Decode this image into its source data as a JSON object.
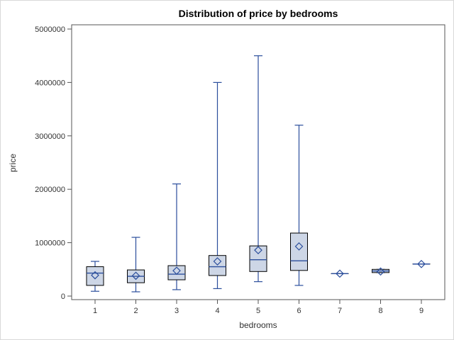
{
  "chart_data": {
    "type": "box",
    "title": "Distribution of price by bedrooms",
    "xlabel": "bedrooms",
    "ylabel": "price",
    "ylim": [
      0,
      5000000
    ],
    "yticks": [
      0,
      1000000,
      2000000,
      3000000,
      4000000,
      5000000
    ],
    "ytick_labels": [
      "0",
      "1000000",
      "2000000",
      "3000000",
      "4000000",
      "5000000"
    ],
    "categories": [
      "1",
      "2",
      "3",
      "4",
      "5",
      "6",
      "7",
      "8",
      "9"
    ],
    "series": [
      {
        "category": "1",
        "min": 90000,
        "q1": 200000,
        "median": 430000,
        "q3": 550000,
        "max": 650000,
        "mean": 390000
      },
      {
        "category": "2",
        "min": 80000,
        "q1": 250000,
        "median": 370000,
        "q3": 490000,
        "max": 1100000,
        "mean": 380000
      },
      {
        "category": "3",
        "min": 120000,
        "q1": 305000,
        "median": 410000,
        "q3": 570000,
        "max": 2100000,
        "mean": 475000
      },
      {
        "category": "4",
        "min": 140000,
        "q1": 385000,
        "median": 550000,
        "q3": 760000,
        "max": 4000000,
        "mean": 650000
      },
      {
        "category": "5",
        "min": 270000,
        "q1": 460000,
        "median": 680000,
        "q3": 940000,
        "max": 4500000,
        "mean": 860000
      },
      {
        "category": "6",
        "min": 200000,
        "q1": 480000,
        "median": 660000,
        "q3": 1180000,
        "max": 3200000,
        "mean": 930000
      },
      {
        "category": "7",
        "min": 420000,
        "q1": 420000,
        "median": 420000,
        "q3": 420000,
        "max": 420000,
        "mean": 420000
      },
      {
        "category": "8",
        "min": 440000,
        "q1": 440000,
        "median": 470000,
        "q3": 500000,
        "max": 500000,
        "mean": 460000
      },
      {
        "category": "9",
        "min": 600000,
        "q1": 600000,
        "median": 600000,
        "q3": 600000,
        "max": 600000,
        "mean": 600000
      }
    ],
    "colors": {
      "box_fill": "#cdd6e6",
      "box_stroke": "#000000",
      "whisker": "#2b4e9c",
      "mean_marker": "#2b4e9c",
      "axis": "#555555"
    },
    "grid": false,
    "legend": "none"
  }
}
